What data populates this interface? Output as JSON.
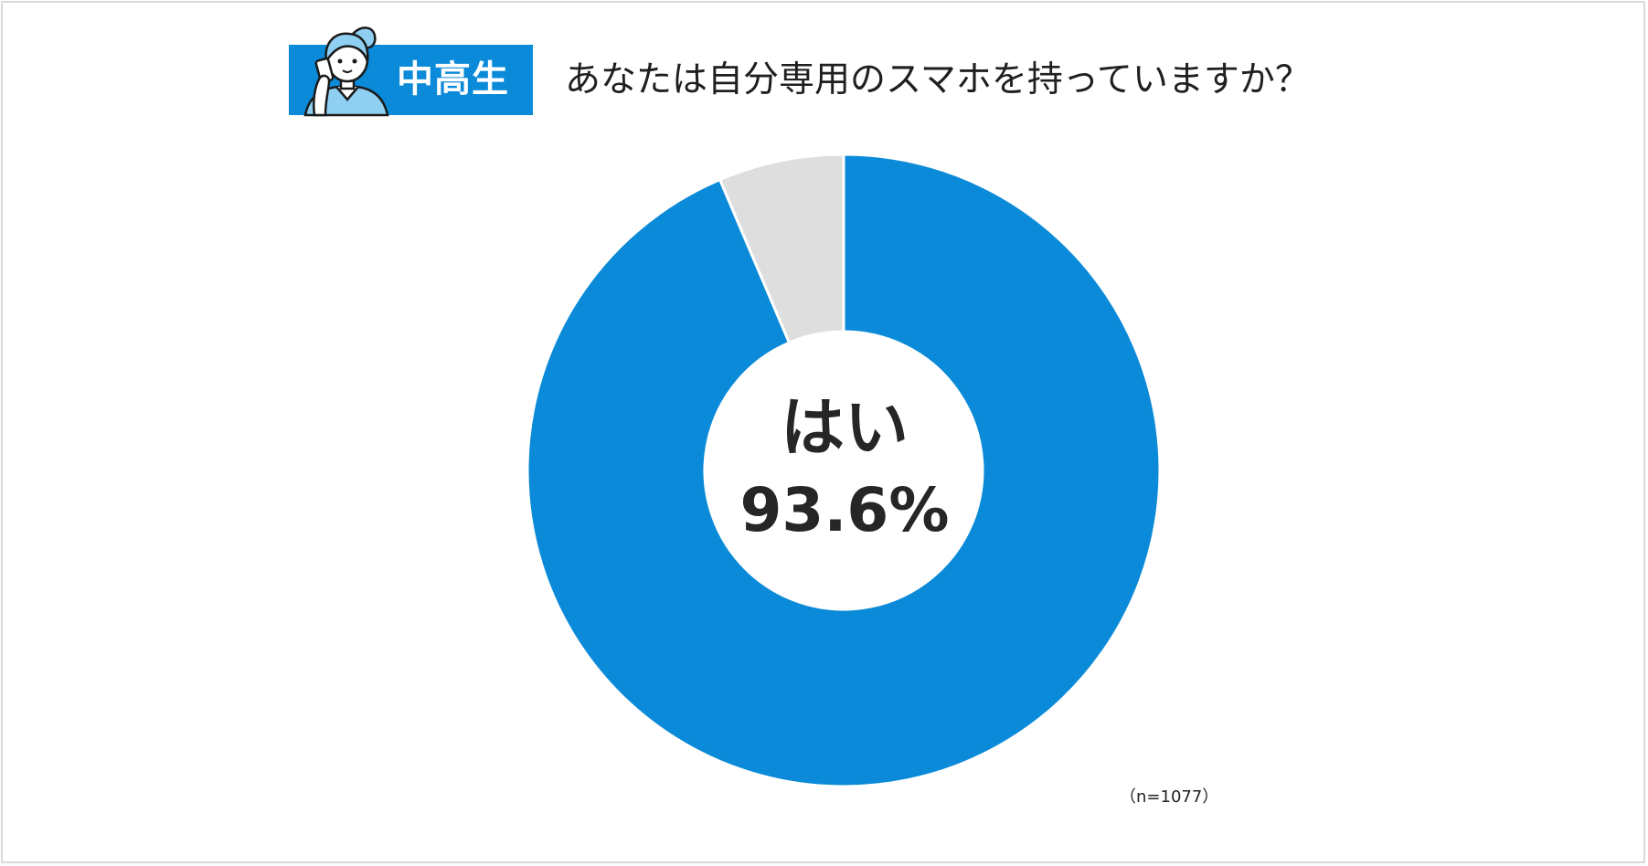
{
  "badge": {
    "label": "中高生",
    "color": "#0a8ad8",
    "icon": "student-on-phone-icon"
  },
  "question": "あなたは自分専用のスマホを持っていますか？",
  "note": "（n=1077）",
  "chart_data": {
    "type": "pie",
    "style": "donut",
    "title": "あなたは自分専用のスマホを持っていますか？",
    "sample_size": "n=1077",
    "slices": [
      {
        "label": "はい",
        "value": 93.6,
        "value_label": "93.6%",
        "color": "#0a8ad8"
      },
      {
        "label": "",
        "value": 6.4,
        "color": "#dedede"
      }
    ],
    "start": "12 o'clock",
    "direction": "clockwise"
  }
}
